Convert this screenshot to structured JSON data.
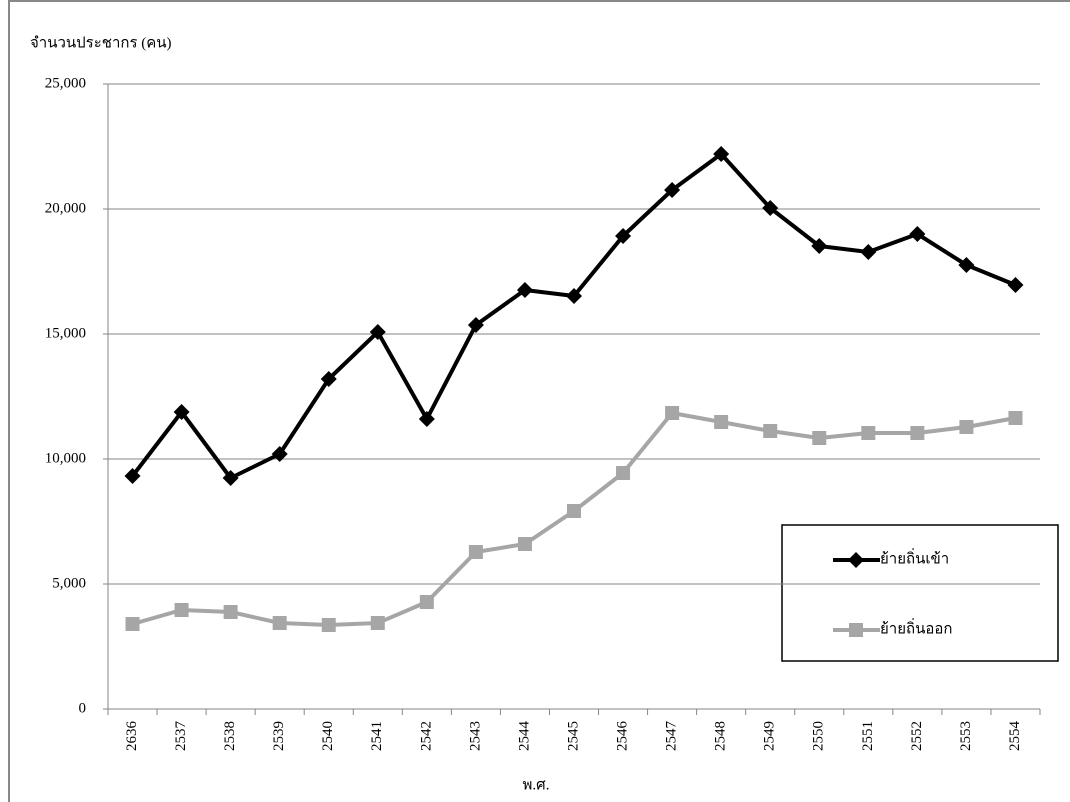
{
  "chart_data": {
    "type": "line",
    "y_label": "จำนวนประชากร (คน)",
    "x_label": "พ.ศ.",
    "categories": [
      "2636",
      "2537",
      "2538",
      "2539",
      "2540",
      "2541",
      "2542",
      "2543",
      "2544",
      "2545",
      "2546",
      "2547",
      "2548",
      "2549",
      "2550",
      "2551",
      "2552",
      "2553",
      "2554"
    ],
    "series": [
      {
        "name": "ย้ายถิ่นเข้า",
        "color": "#000000",
        "marker": "diamond",
        "values": [
          9320,
          11880,
          9240,
          10200,
          13200,
          15080,
          11600,
          15360,
          16760,
          16520,
          18920,
          20760,
          22200,
          20040,
          18520,
          18280,
          19000,
          17760,
          16960
        ]
      },
      {
        "name": "ย้ายถิ่นออก",
        "color": "#a6a6a6",
        "marker": "square",
        "values": [
          3400,
          3960,
          3880,
          3440,
          3360,
          3440,
          4280,
          6280,
          6600,
          7920,
          9440,
          11840,
          11480,
          11120,
          10840,
          11040,
          11040,
          11280,
          11640
        ]
      }
    ],
    "ylim": [
      0,
      25000
    ],
    "yticks": [
      0,
      {
        "value": 5000,
        "label": "5,000"
      },
      {
        "value": 10000,
        "label": "10,000"
      },
      {
        "value": 15000,
        "label": "15,000"
      },
      {
        "value": 20000,
        "label": "20,000"
      },
      {
        "value": 25000,
        "label": "25,000"
      }
    ],
    "grid": true,
    "legend": "right"
  }
}
